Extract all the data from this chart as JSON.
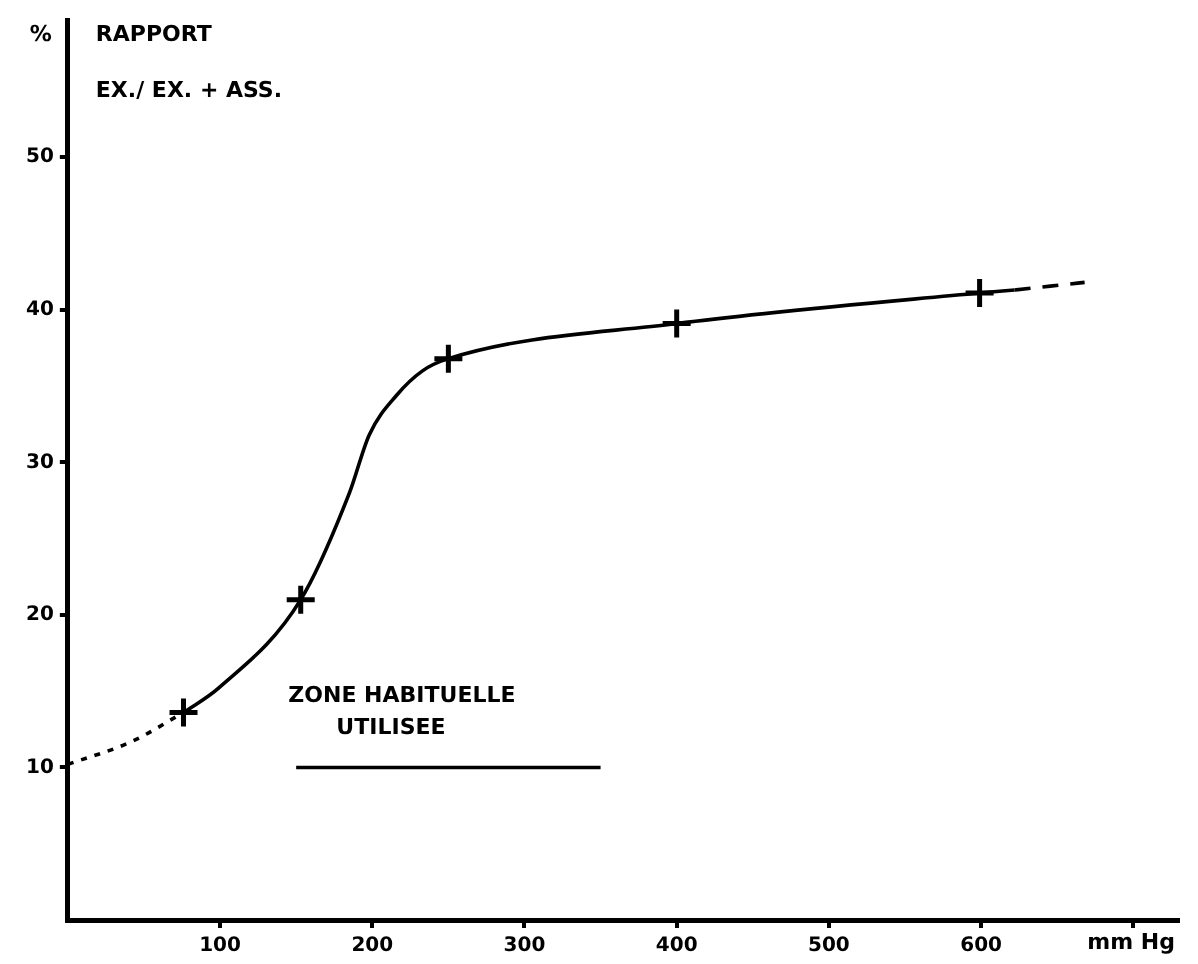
{
  "chart_data": {
    "type": "line",
    "title": "RAPPORT",
    "subtitle": "EX./ EX. + ASS.",
    "ylabel": "%",
    "xlabel": "mm Hg",
    "xlim": [
      0,
      730
    ],
    "ylim": [
      0,
      59
    ],
    "xticks": [
      100,
      200,
      300,
      400,
      500,
      600,
      {
        "value": 700,
        "label": null
      }
    ],
    "yticks": [
      10,
      20,
      30,
      40,
      50
    ],
    "grid": false,
    "legend": false,
    "series": [
      {
        "type": "scatter",
        "marker": "cross",
        "color": "#000000",
        "x": [
          76,
          153,
          250,
          400,
          599
        ],
        "values": [
          13.6,
          21.0,
          36.8,
          39.1,
          41.1
        ]
      },
      {
        "marker": "none",
        "line_style": "solid",
        "color": "#000000",
        "x": [
          76,
          99,
          153,
          185,
          198,
          216,
          233,
          250,
          400,
          599,
          622
        ],
        "values": [
          13.6,
          15.2,
          21.0,
          28.0,
          31.8,
          34.4,
          36.0,
          36.8,
          39.1,
          41.1,
          41.3
        ]
      },
      {
        "marker": "none",
        "line_style": "dotted",
        "color": "#000000",
        "x": [
          0,
          42,
          76
        ],
        "values": [
          10.2,
          11.7,
          13.6
        ]
      },
      {
        "marker": "none",
        "line_style": "dashed",
        "color": "#000000",
        "x": [
          622,
          668
        ],
        "values": [
          41.3,
          41.8
        ]
      },
      {
        "marker": "none",
        "line_style": "solid",
        "color": "#000000",
        "x": [
          150,
          350
        ],
        "values": [
          10,
          10
        ]
      }
    ],
    "annotations": [
      {
        "text": "ZONE HABITUELLE\nUTILISEE",
        "x": 250,
        "y": 10
      }
    ]
  }
}
